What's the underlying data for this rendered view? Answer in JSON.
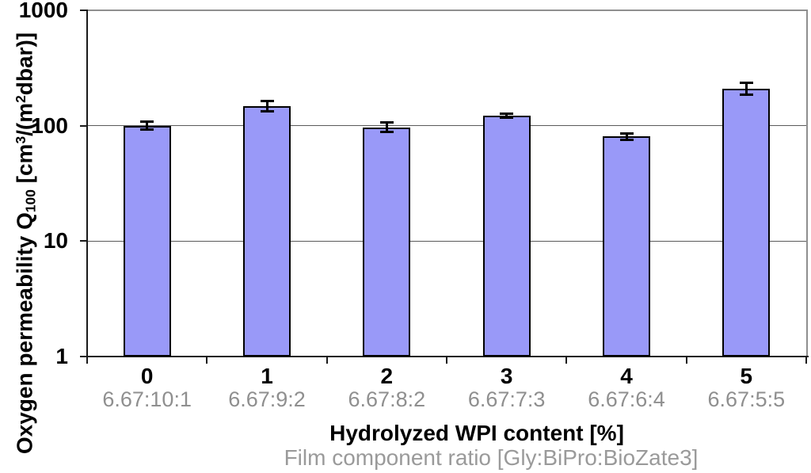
{
  "chart_data": {
    "type": "bar",
    "title": "",
    "categories": [
      "0",
      "1",
      "2",
      "3",
      "4",
      "5"
    ],
    "category_sublabels": [
      "6.67:10:1",
      "6.67:9:2",
      "6.67:8:2",
      "6.67:7:3",
      "6.67:6:4",
      "6.67:5:5"
    ],
    "values": [
      100,
      148,
      97,
      123,
      81,
      210
    ],
    "errors": [
      8,
      15,
      9,
      5,
      5,
      25
    ],
    "xlabel": "Hydrolyzed WPI content [%]",
    "xlabel2": "Film component ratio [Gly:BiPro:BioZate3]",
    "ylabel_plain": "Oxygen permeability Q100 [cm3/(m2dbar)]",
    "ylabel_segments": [
      {
        "text": "Oxygen permeability Q"
      },
      {
        "text": "100",
        "style": "sub"
      },
      {
        "text": " [cm"
      },
      {
        "text": "3",
        "style": "sup"
      },
      {
        "text": "/(m"
      },
      {
        "text": "2",
        "style": "sup"
      },
      {
        "text": "dbar)]"
      }
    ],
    "y_scale": "log",
    "ylim": [
      1,
      1000
    ],
    "y_ticks": [
      "1",
      "10",
      "100",
      "1000"
    ],
    "grid": true,
    "legend_position": "none"
  },
  "colors": {
    "bar_fill": "#9999f8",
    "bar_border": "#000000",
    "error_bar": "#000000",
    "gridline": "#5a5a5a",
    "plot_border": "#8f8f8f",
    "axis": "#1a1a1a",
    "tick_label": "#000000",
    "sublabel_gray": "#8f8f8f",
    "background": "#ffffff"
  }
}
